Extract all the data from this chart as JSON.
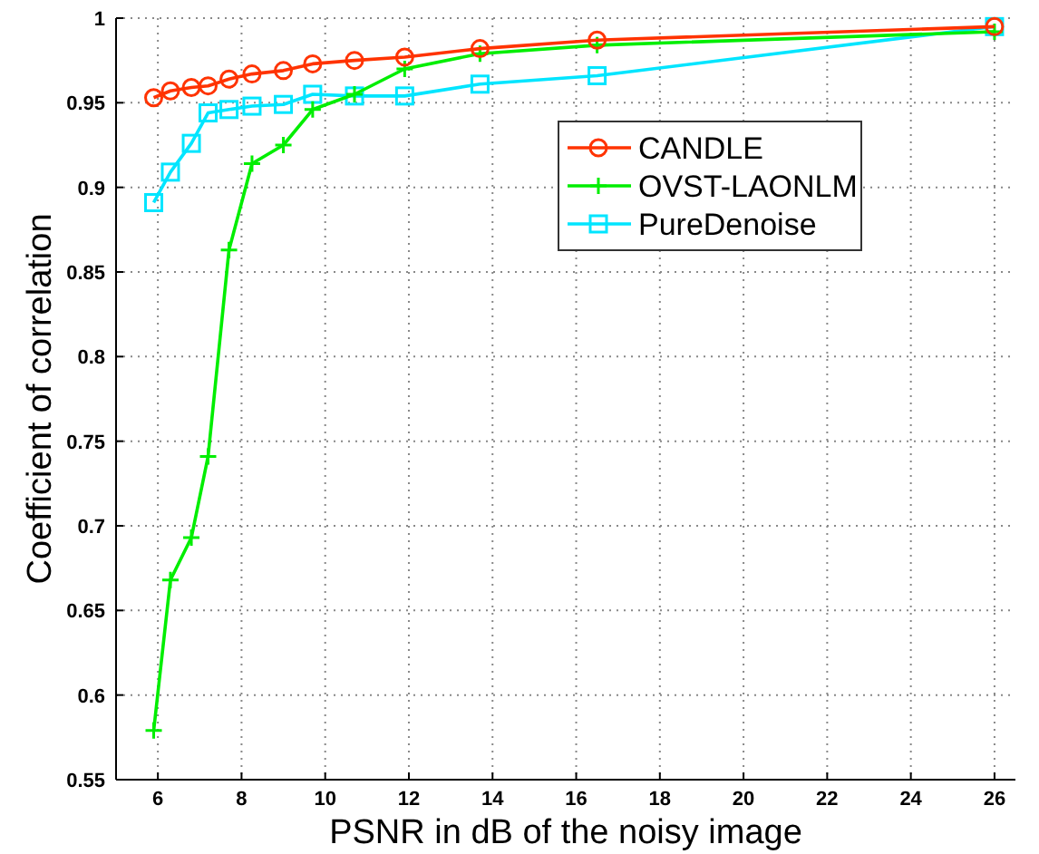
{
  "chart_data": {
    "type": "line",
    "xlabel": "PSNR in dB of the noisy image",
    "ylabel": "Coefficient of correlation",
    "x": [
      5.9,
      6.3,
      6.8,
      7.2,
      7.7,
      8.25,
      9,
      9.7,
      10.7,
      11.9,
      13.7,
      16.5,
      26
    ],
    "series": [
      {
        "name": "CANDLE",
        "color": "#ff3300",
        "marker": "circle",
        "values": [
          0.953,
          0.957,
          0.959,
          0.96,
          0.964,
          0.967,
          0.969,
          0.973,
          0.975,
          0.977,
          0.982,
          0.987,
          0.995
        ]
      },
      {
        "name": "OVST-LAONLM",
        "color": "#00ee00",
        "marker": "cross",
        "values": [
          0.579,
          0.668,
          0.693,
          0.741,
          0.863,
          0.914,
          0.925,
          0.946,
          0.955,
          0.97,
          0.979,
          0.984,
          0.992
        ]
      },
      {
        "name": "PureDenoise",
        "color": "#00e5ff",
        "marker": "square",
        "values": [
          0.891,
          0.909,
          0.926,
          0.944,
          0.946,
          0.948,
          0.949,
          0.955,
          0.954,
          0.954,
          0.961,
          0.966,
          0.995
        ]
      }
    ],
    "xlim": [
      5,
      26.5
    ],
    "xticks": [
      6,
      8,
      10,
      12,
      14,
      16,
      18,
      20,
      22,
      24,
      26
    ],
    "ylim": [
      0.55,
      1
    ],
    "yticks": [
      0.55,
      0.6,
      0.65,
      0.7,
      0.75,
      0.8,
      0.85,
      0.9,
      0.95,
      1
    ],
    "grid": true,
    "legend": "top right",
    "line_style": "solid"
  }
}
